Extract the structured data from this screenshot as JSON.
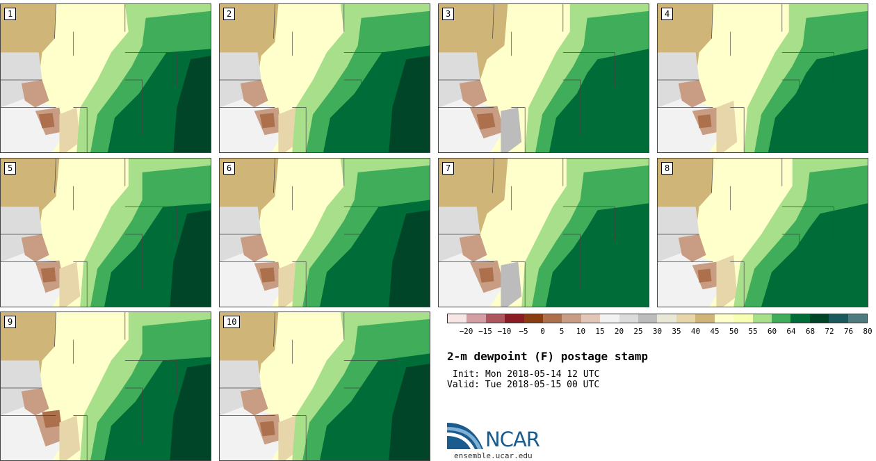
{
  "panels": [
    {
      "label": "1"
    },
    {
      "label": "2"
    },
    {
      "label": "3"
    },
    {
      "label": "4"
    },
    {
      "label": "5"
    },
    {
      "label": "6"
    },
    {
      "label": "7"
    },
    {
      "label": "8"
    },
    {
      "label": "9"
    },
    {
      "label": "10"
    }
  ],
  "colorbar": {
    "colors": [
      "#f7e6e6",
      "#d39fa4",
      "#ae565d",
      "#8a1c23",
      "#8a3d10",
      "#ad704d",
      "#c89d84",
      "#e2c7b8",
      "#f2f2f2",
      "#dcdcdc",
      "#bcbcbc",
      "#e9e8d6",
      "#e6d6aa",
      "#cfb578",
      "#ffffcc",
      "#f6ffb2",
      "#a8df8a",
      "#40ad5a",
      "#006c37",
      "#004528",
      "#1a5a5c",
      "#4d7b7e"
    ],
    "ticks": [
      "−20",
      "−15",
      "−10",
      "−5",
      "0",
      "5",
      "10",
      "15",
      "20",
      "25",
      "30",
      "35",
      "40",
      "45",
      "50",
      "55",
      "60",
      "64",
      "68",
      "72",
      "76",
      "80"
    ]
  },
  "title": "2-m dewpoint (F) postage stamp",
  "init": "Init: Mon 2018-05-14 12 UTC",
  "valid": "Valid: Tue 2018-05-15 00 UTC",
  "logo": {
    "text": "NCAR",
    "site": "ensemble.ucar.edu"
  }
}
